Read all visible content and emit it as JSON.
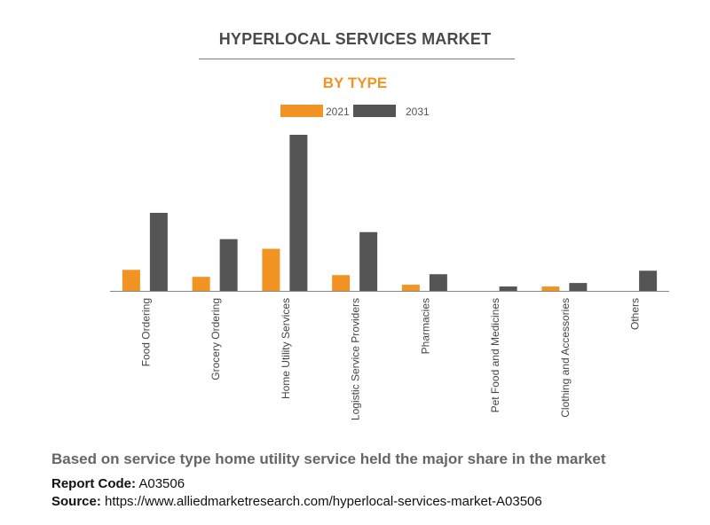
{
  "header": {
    "title": "HYPERLOCAL SERVICES MARKET",
    "subtitle": "BY TYPE"
  },
  "colors": {
    "series_2021": "#f29423",
    "series_2031": "#555555",
    "axis": "#888888",
    "subtitle": "#f29423"
  },
  "chart_data": {
    "type": "bar",
    "categories": [
      "Food Ordering",
      "Grocery Ordering",
      "Home Utility Services",
      "Logistic Service Providers",
      "Pharmacies",
      "Pet Food and Medicines",
      "Clothing and Accessories",
      "Others"
    ],
    "series": [
      {
        "name": "2021",
        "values": [
          2.4,
          1.6,
          4.8,
          1.8,
          0.7,
          0.0,
          0.5,
          0.0
        ]
      },
      {
        "name": "2031",
        "values": [
          8.9,
          5.9,
          17.8,
          6.7,
          1.9,
          0.5,
          0.9,
          2.3
        ]
      }
    ],
    "ylim": [
      0,
      18
    ],
    "legend_placement": "top-center",
    "grid": false,
    "y_axis_visible": false
  },
  "footer": {
    "caption": "Based on service type home utility service held the major share in the market",
    "report_code_label": "Report Code:",
    "report_code_value": "A03506",
    "source_label": "Source:",
    "source_value": "https://www.alliedmarketresearch.com/hyperlocal-services-market-A03506"
  }
}
